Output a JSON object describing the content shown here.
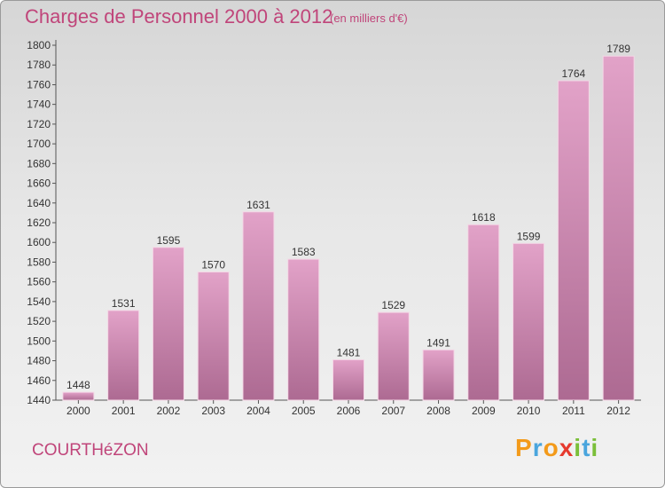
{
  "header": {
    "title": "Charges de Personnel 2000 à 2012",
    "subtitle": "(en milliers d'€)"
  },
  "footer": {
    "place": "COURTHéZON",
    "logo_text": "Proxiti"
  },
  "colors": {
    "accent": "#c0457a",
    "bar_top": "#e2a2c8",
    "bar_bottom": "#ad6a92"
  },
  "chart_data": {
    "type": "bar",
    "title": "Charges de Personnel 2000 à 2012",
    "subtitle": "(en milliers d'€)",
    "xlabel": "",
    "ylabel": "",
    "categories": [
      "2000",
      "2001",
      "2002",
      "2003",
      "2004",
      "2005",
      "2006",
      "2007",
      "2008",
      "2009",
      "2010",
      "2011",
      "2012"
    ],
    "values": [
      1448,
      1531,
      1595,
      1570,
      1631,
      1583,
      1481,
      1529,
      1491,
      1618,
      1599,
      1764,
      1789
    ],
    "ylim": [
      1440,
      1800
    ],
    "yticks": [
      1440,
      1460,
      1480,
      1500,
      1520,
      1540,
      1560,
      1580,
      1600,
      1620,
      1640,
      1660,
      1680,
      1700,
      1720,
      1740,
      1760,
      1780,
      1800
    ],
    "grid": false,
    "legend": "none"
  }
}
